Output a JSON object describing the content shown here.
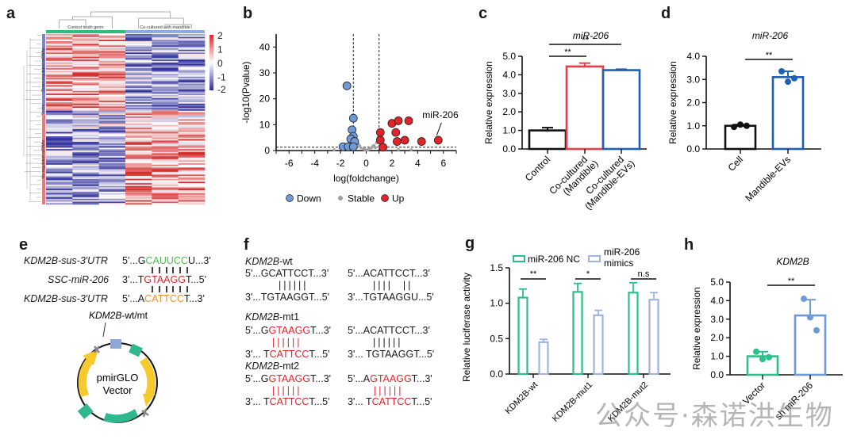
{
  "panels": {
    "a": {
      "letter": "a"
    },
    "b": {
      "letter": "b"
    },
    "c": {
      "letter": "c"
    },
    "d": {
      "letter": "d"
    },
    "e": {
      "letter": "e"
    },
    "f": {
      "letter": "f"
    },
    "g": {
      "letter": "g"
    },
    "h": {
      "letter": "h"
    }
  },
  "colors": {
    "red": "#e0242a",
    "blue_dark": "#1f5fb5",
    "blue_light": "#6f9ad6",
    "teal": "#2dbf8a",
    "lav": "#9fb5e0",
    "gray": "#a0a0a0",
    "green_seq": "#4cbb4c",
    "orange_seq": "#f0902a"
  },
  "chart_data": [
    {
      "id": "a",
      "type": "heatmap",
      "title": "",
      "column_groups": [
        {
          "label": "Control tooth germ",
          "color": "#2dbf7a",
          "columns": 3
        },
        {
          "label": "Co-cultured with mandible",
          "color": "#86aee0",
          "columns": 3
        }
      ],
      "row_groups": [
        {
          "label": "Down-regulated miRNAs",
          "color": "#7b84c9"
        },
        {
          "label": "Stable",
          "color": "#9aa0d6"
        },
        {
          "label": "Up-regulated miRNAs",
          "color": "#ee7777"
        }
      ],
      "colorbar": {
        "min": -2,
        "max": 2,
        "ticks": [
          "2",
          "1",
          "0",
          "-1",
          "-2"
        ],
        "low_color": "#2f2f9a",
        "mid_color": "#ffffff",
        "high_color": "#d42a2a"
      },
      "row_count": 120
    },
    {
      "id": "b",
      "type": "scatter",
      "title": "",
      "xlabel": "log(foldchange)",
      "ylabel": "-log10(Pvalue)",
      "xlim": [
        -7,
        7
      ],
      "ylim": [
        0,
        45
      ],
      "xticks": [
        "-6",
        "-4",
        "-2",
        "0",
        "2",
        "4",
        "6"
      ],
      "yticks": [
        "0",
        "10",
        "20",
        "30",
        "40"
      ],
      "thresholds": {
        "x": [
          -1,
          1
        ],
        "y": 1.3
      },
      "annotation": {
        "label": "miR-206",
        "x": 5.6,
        "y": 4
      },
      "legend": [
        "Down",
        "Stable",
        "Up"
      ],
      "legend_position": "bottom",
      "series": [
        {
          "name": "Down",
          "color": "#6f9ad6",
          "points": [
            [
              -1.5,
              25
            ],
            [
              -1.0,
              12.5
            ],
            [
              -1.1,
              8
            ],
            [
              -1.0,
              5.5
            ],
            [
              -1.2,
              4.5
            ],
            [
              -0.9,
              3.5
            ],
            [
              -1.8,
              1.5
            ],
            [
              -1.4,
              1.5
            ],
            [
              -1.0,
              1.5
            ]
          ]
        },
        {
          "name": "Up",
          "color": "#e0242a",
          "points": [
            [
              1.1,
              7
            ],
            [
              1.1,
              4
            ],
            [
              1.3,
              1.3
            ],
            [
              2.0,
              10.5
            ],
            [
              2.5,
              11.5
            ],
            [
              3.3,
              11.5
            ],
            [
              2.3,
              7
            ],
            [
              2.4,
              3.5
            ],
            [
              3.0,
              4
            ],
            [
              4.3,
              3.5
            ],
            [
              5.6,
              4
            ]
          ]
        },
        {
          "name": "Stable",
          "color": "#a0a0a0",
          "points": [
            [
              -0.8,
              4
            ],
            [
              -0.6,
              2.5
            ],
            [
              -0.4,
              1
            ],
            [
              -0.2,
              0.6
            ],
            [
              0.0,
              0.3
            ],
            [
              0.2,
              0.5
            ],
            [
              0.4,
              1
            ],
            [
              0.6,
              2
            ],
            [
              0.8,
              3
            ],
            [
              0.9,
              5
            ],
            [
              -0.9,
              6
            ],
            [
              0.5,
              1.6
            ],
            [
              -0.5,
              1.8
            ],
            [
              0.1,
              0.2
            ],
            [
              -0.1,
              0.4
            ],
            [
              0.7,
              1.2
            ],
            [
              -0.7,
              1.3
            ],
            [
              1.5,
              0.5
            ],
            [
              2.5,
              0.4
            ],
            [
              3.5,
              0.3
            ],
            [
              -2.5,
              0.3
            ]
          ]
        }
      ]
    },
    {
      "id": "c",
      "type": "bar",
      "title": "miR-206",
      "ylabel": "Relative expression",
      "ylim": [
        0,
        5
      ],
      "yticks": [
        "0.0",
        "1.0",
        "2.0",
        "3.0",
        "4.0",
        "5.0"
      ],
      "categories": [
        "Control",
        "Co-cultured (Mandible)",
        "Co-cultured (Mandible-EVs)"
      ],
      "values": [
        1.0,
        4.45,
        4.25
      ],
      "errors": [
        0.15,
        0.18,
        0.05
      ],
      "bar_colors": [
        "#111111",
        "#e8404a",
        "#1f5fb5"
      ],
      "significance": [
        {
          "from": 0,
          "to": 1,
          "label": "**"
        },
        {
          "from": 0,
          "to": 2,
          "label": "**"
        }
      ]
    },
    {
      "id": "d",
      "type": "bar",
      "title": "miR-206",
      "ylabel": "Relative expression",
      "ylim": [
        0,
        4
      ],
      "yticks": [
        "0.0",
        "1.0",
        "2.0",
        "3.0",
        "4.0"
      ],
      "categories": [
        "Cell",
        "Mandible-EVs"
      ],
      "values": [
        1.0,
        3.1
      ],
      "errors": [
        0.05,
        0.25
      ],
      "points": [
        [
          0.95,
          1.05,
          1.0
        ],
        [
          3.35,
          2.9,
          3.05
        ]
      ],
      "bar_colors": [
        "#111111",
        "#1f5fb5"
      ],
      "significance": [
        {
          "from": 0,
          "to": 1,
          "label": "**"
        }
      ]
    },
    {
      "id": "g",
      "type": "bar",
      "title": "",
      "ylabel": "Relative luciferase activity",
      "ylim": [
        0,
        1.5
      ],
      "yticks": [
        "0.0",
        "0.5",
        "1.0",
        "1.5"
      ],
      "categories": [
        "KDM2B-wt",
        "KDM2B-mut1",
        "KDM2B-mut2"
      ],
      "legend_position": "top",
      "series": [
        {
          "name": "miR-206 NC",
          "color": "#2dbf8a",
          "values": [
            1.08,
            1.16,
            1.15
          ],
          "errors": [
            0.12,
            0.12,
            0.14
          ]
        },
        {
          "name": "miR-206 mimics",
          "color": "#9fb5e0",
          "values": [
            0.45,
            0.83,
            1.05
          ],
          "errors": [
            0.04,
            0.07,
            0.1
          ]
        }
      ],
      "significance": [
        "**",
        "*",
        "n.s"
      ]
    },
    {
      "id": "h",
      "type": "bar",
      "title": "KDM2B",
      "ylabel": "Relative expression",
      "ylim": [
        0,
        5
      ],
      "yticks": [
        "0.0",
        "1.0",
        "2.0",
        "3.0",
        "4.0",
        "5.0"
      ],
      "categories": [
        "Vector",
        "sh miR-206"
      ],
      "values": [
        1.0,
        3.2
      ],
      "errors": [
        0.25,
        0.85
      ],
      "points": [
        [
          1.25,
          0.85,
          0.95
        ],
        [
          4.1,
          3.1,
          2.4
        ]
      ],
      "bar_colors": [
        "#2dbf8a",
        "#6f9ad6"
      ],
      "significance": [
        {
          "from": 0,
          "to": 1,
          "label": "**"
        }
      ]
    }
  ],
  "panel_e": {
    "rows": [
      {
        "label": "KDM2B-sus-3'UTR",
        "pre": "5'...G",
        "core": "CAUUCC",
        "post": "U...3'",
        "core_color": "green"
      },
      {
        "label": "SSC-miR-206",
        "pre": "3'...T",
        "core": "GTAAGG",
        "post": "T...5'",
        "core_color": "red"
      },
      {
        "label": "KDM2B-sus-3'UTR",
        "pre": "5'...A",
        "core": "CATTCC",
        "post": "T...3'",
        "core_color": "orange"
      }
    ],
    "plasmid_label": "KDM2B-wt/mt",
    "plasmid_name_1": "pmirGLO",
    "plasmid_name_2": "Vector"
  },
  "panel_f": {
    "wt": {
      "title_italic": "KDM2B",
      "title_rest": "-wt",
      "left_top": "5'...GCATTCCT...3'",
      "left_bonds": "||||||",
      "left_bottom": "3'...TGTAAGGT...5'",
      "right_top": "5'...ACATTCCT...3'",
      "right_bonds": "||||  ||",
      "right_bottom": "3'...TGTAAGGU...5'"
    },
    "mt1": {
      "title_italic": "KDM2B",
      "title_rest": "-mt1",
      "left_top_pre": "5'...G",
      "left_top_core": "GTAAGG",
      "left_top_post": "T...3'",
      "left_bonds": "||||||",
      "left_bottom_pre": "3'... T",
      "left_bottom_core": "CATTCC",
      "left_bottom_post": "T...5'",
      "right_top": "5'...ACATTCCT...3'",
      "right_bonds": "||||||",
      "right_bottom": "3'... TGTAAGGT...5'"
    },
    "mt2": {
      "title_italic": "KDM2B",
      "title_rest": "-mt2",
      "left_top_pre": "5'...G",
      "left_top_core": "GTAAGG",
      "left_top_post": "T...3'",
      "left_bonds": "||||||",
      "left_bottom_pre": "3'... T",
      "left_bottom_core": "CATTCC",
      "left_bottom_post": "T...5'",
      "right_top_pre": "5'...A",
      "right_top_core": "GTAAGG",
      "right_top_post": "T...3'",
      "right_bonds": "||||||",
      "right_bottom_pre": "3'... T",
      "right_bottom_core": "CATTCC",
      "right_bottom_post": "T...5'"
    }
  },
  "watermark": "公众号·森诺洪生物"
}
